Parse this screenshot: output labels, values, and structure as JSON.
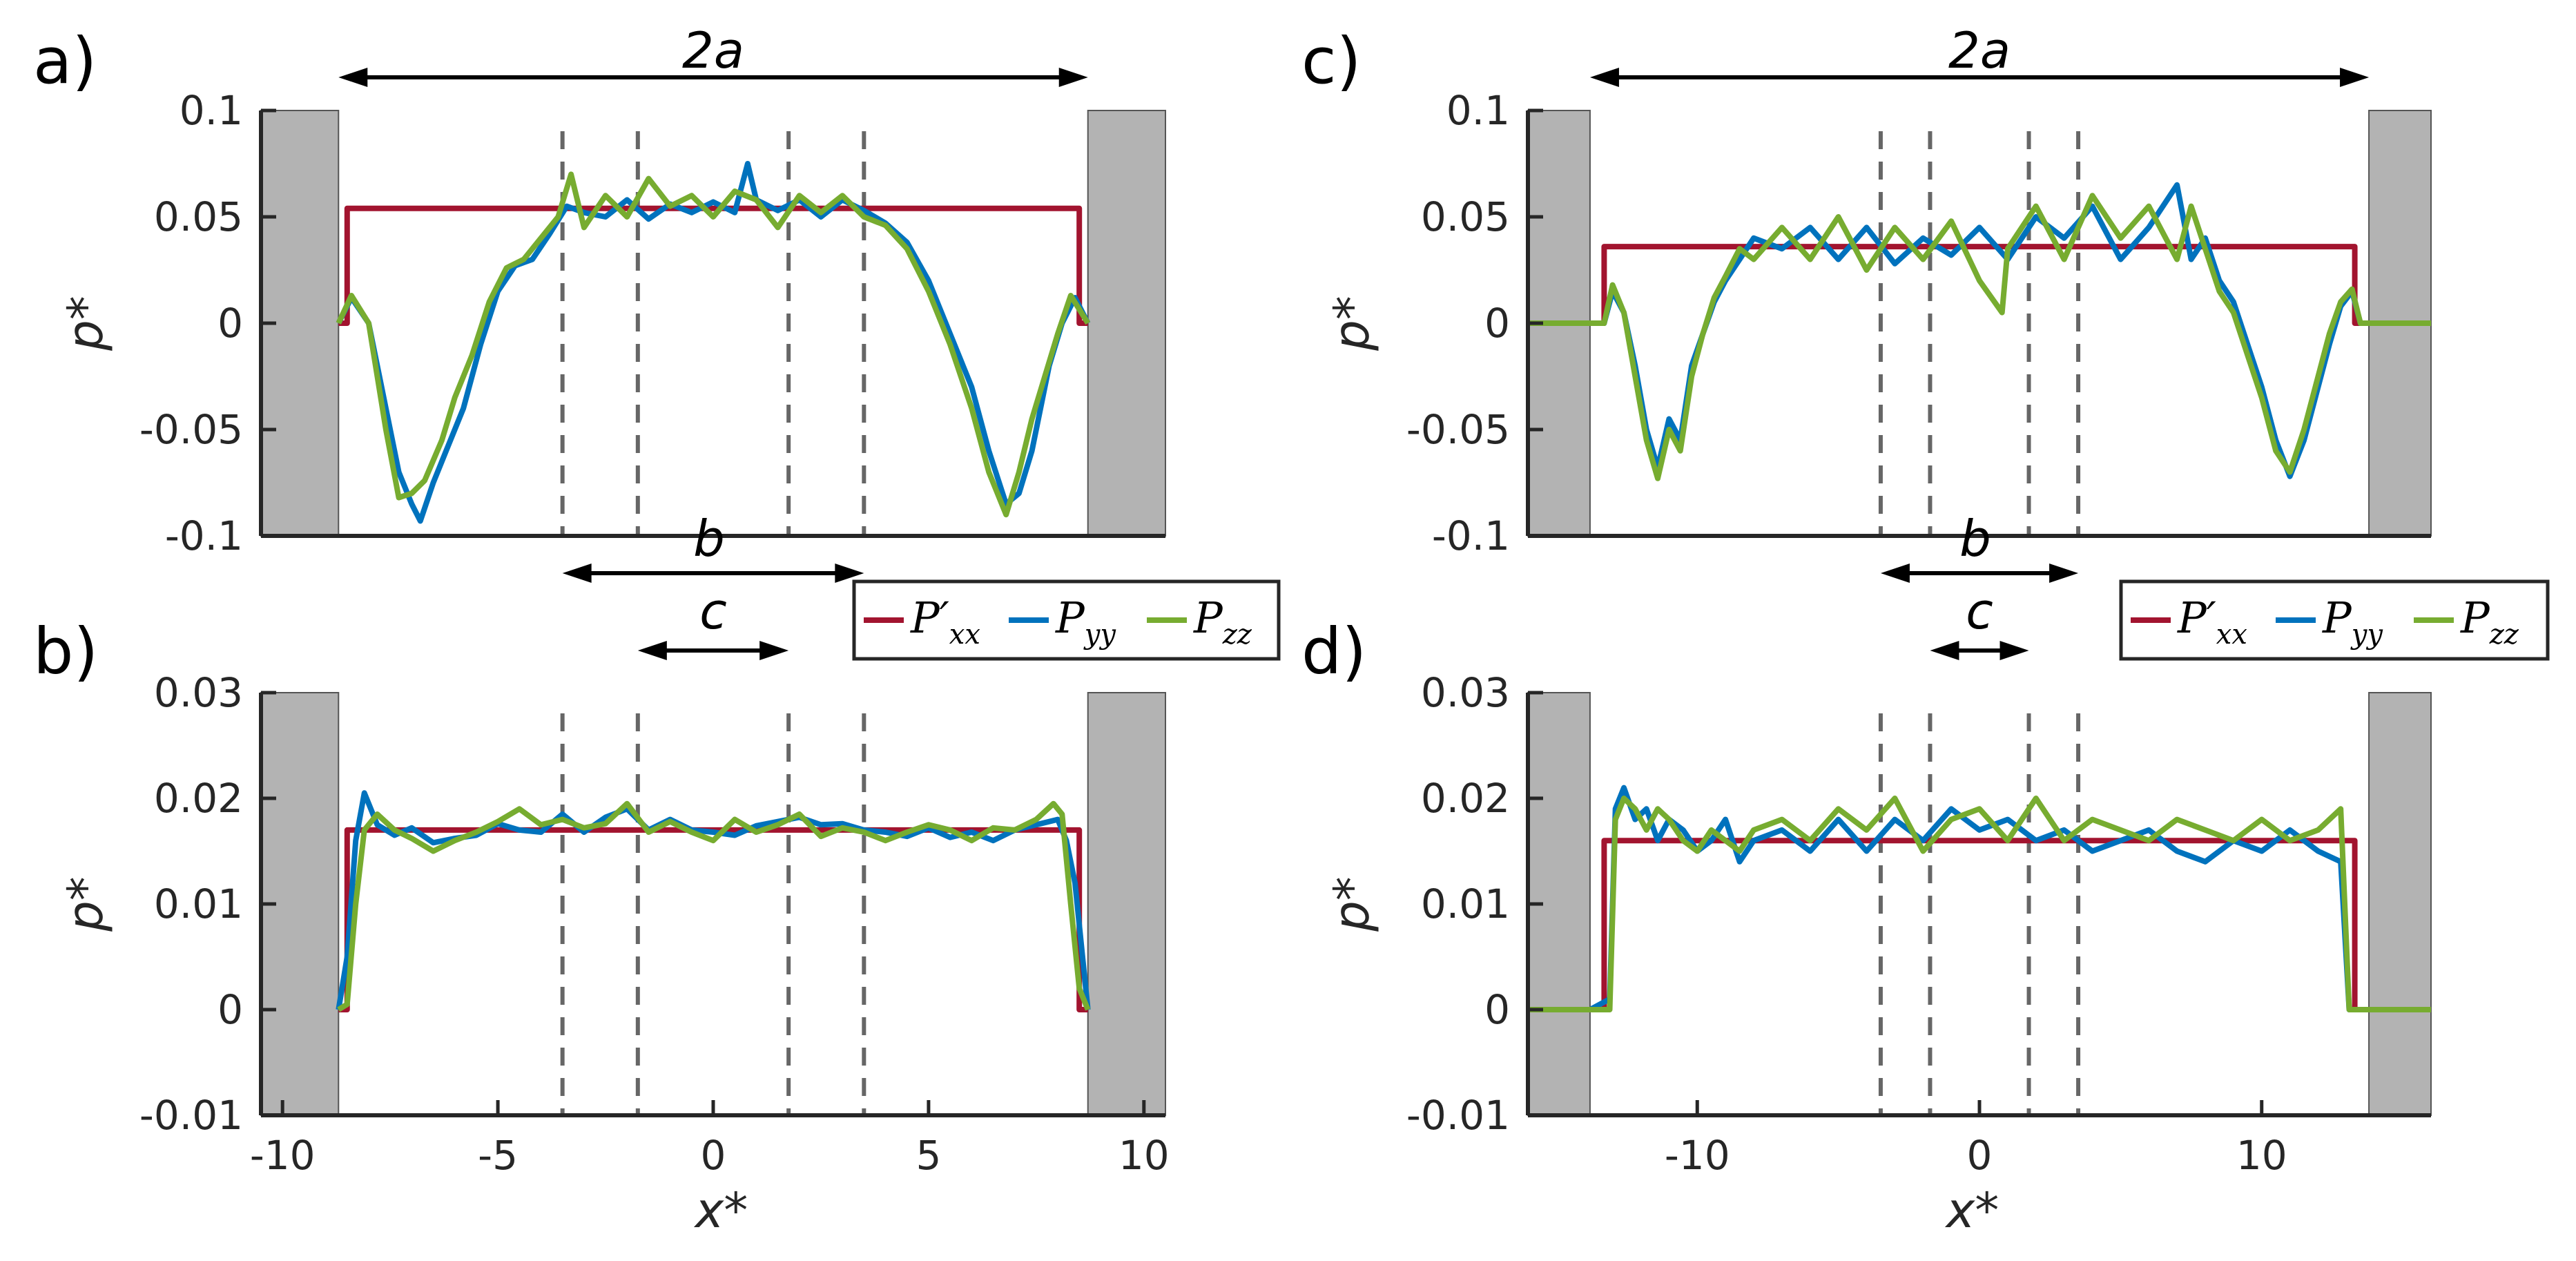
{
  "colors": {
    "pxx": "#a2142f",
    "pyy": "#0072bd",
    "pzz": "#77ac30",
    "wall": "#b3b3b3",
    "dash": "#666666"
  },
  "chart_data": [
    {
      "type": "line",
      "panel": "a)",
      "xlim": [
        -10.5,
        10.5
      ],
      "ylim": [
        -0.1,
        0.1
      ],
      "yticks": [
        -0.1,
        -0.05,
        0,
        0.05,
        0.1
      ],
      "ytick_labels": [
        "-0.1",
        "-0.05",
        "0",
        "0.05",
        "0.1"
      ],
      "xticks": [],
      "xtick_labels": [],
      "ylabel": "p*",
      "xlabel": "",
      "walls": [
        -8.7,
        8.7
      ],
      "dashed_x": [
        -3.5,
        -1.75,
        1.75,
        3.5
      ],
      "span_labels": {
        "top": "2a"
      },
      "series": [
        {
          "name": "P'xx",
          "x": [
            -8.7,
            -8.5,
            -8.5,
            8.5,
            8.5,
            8.7
          ],
          "y": [
            0,
            0,
            0.054,
            0.054,
            0,
            0
          ]
        },
        {
          "name": "Pyy",
          "x": [
            -8.7,
            -8.4,
            -8.0,
            -7.6,
            -7.3,
            -7.0,
            -6.8,
            -6.5,
            -6.2,
            -5.8,
            -5.4,
            -5.0,
            -4.6,
            -4.2,
            -3.8,
            -3.4,
            -3.0,
            -2.5,
            -2.0,
            -1.5,
            -1.0,
            -0.5,
            0.0,
            0.5,
            0.8,
            1.0,
            1.5,
            2.0,
            2.5,
            3.0,
            3.5,
            4.0,
            4.5,
            5.0,
            5.5,
            6.0,
            6.4,
            6.8,
            7.1,
            7.4,
            7.6,
            7.8,
            8.1,
            8.4,
            8.7
          ],
          "y": [
            0,
            0.012,
            0.0,
            -0.04,
            -0.07,
            -0.085,
            -0.093,
            -0.075,
            -0.06,
            -0.04,
            -0.01,
            0.015,
            0.027,
            0.03,
            0.042,
            0.055,
            0.052,
            0.05,
            0.058,
            0.049,
            0.056,
            0.052,
            0.057,
            0.052,
            0.075,
            0.058,
            0.053,
            0.058,
            0.05,
            0.058,
            0.053,
            0.047,
            0.038,
            0.02,
            -0.005,
            -0.03,
            -0.06,
            -0.085,
            -0.08,
            -0.06,
            -0.04,
            -0.02,
            0.0,
            0.012,
            0.0
          ]
        },
        {
          "name": "Pzz",
          "x": [
            -8.7,
            -8.4,
            -8.0,
            -7.6,
            -7.3,
            -7.0,
            -6.7,
            -6.3,
            -6.0,
            -5.6,
            -5.2,
            -4.8,
            -4.4,
            -4.0,
            -3.6,
            -3.3,
            -3.0,
            -2.5,
            -2.0,
            -1.5,
            -1.0,
            -0.5,
            0.0,
            0.5,
            1.0,
            1.5,
            2.0,
            2.5,
            3.0,
            3.5,
            4.0,
            4.5,
            5.0,
            5.5,
            6.0,
            6.4,
            6.8,
            7.1,
            7.4,
            7.7,
            8.0,
            8.3,
            8.7
          ],
          "y": [
            0,
            0.013,
            0.0,
            -0.05,
            -0.082,
            -0.08,
            -0.074,
            -0.055,
            -0.035,
            -0.015,
            0.01,
            0.026,
            0.03,
            0.04,
            0.05,
            0.07,
            0.045,
            0.06,
            0.05,
            0.068,
            0.055,
            0.06,
            0.05,
            0.062,
            0.058,
            0.045,
            0.06,
            0.052,
            0.06,
            0.05,
            0.046,
            0.035,
            0.015,
            -0.01,
            -0.04,
            -0.07,
            -0.09,
            -0.07,
            -0.045,
            -0.025,
            -0.005,
            0.013,
            0.0
          ]
        }
      ]
    },
    {
      "type": "line",
      "panel": "b)",
      "xlim": [
        -10.5,
        10.5
      ],
      "ylim": [
        -0.01,
        0.03
      ],
      "yticks": [
        -0.01,
        0,
        0.01,
        0.02,
        0.03
      ],
      "ytick_labels": [
        "-0.01",
        "0",
        "0.01",
        "0.02",
        "0.03"
      ],
      "xticks": [
        -10,
        -5,
        0,
        5,
        10
      ],
      "xtick_labels": [
        "-10",
        "-5",
        "0",
        "5",
        "10"
      ],
      "ylabel": "p*",
      "xlabel": "x*",
      "walls": [
        -8.7,
        8.7
      ],
      "dashed_x": [
        -3.5,
        -1.75,
        1.75,
        3.5
      ],
      "span_labels": {
        "b": "b",
        "c": "c"
      },
      "series": [
        {
          "name": "P'xx",
          "x": [
            -8.7,
            -8.5,
            -8.5,
            8.5,
            8.5,
            8.7
          ],
          "y": [
            0,
            0,
            0.017,
            0.017,
            0,
            0
          ]
        },
        {
          "name": "Pyy",
          "x": [
            -8.7,
            -8.5,
            -8.3,
            -8.1,
            -7.8,
            -7.4,
            -7.0,
            -6.5,
            -6.0,
            -5.5,
            -5.0,
            -4.5,
            -4.0,
            -3.5,
            -3.0,
            -2.5,
            -2.0,
            -1.5,
            -1.0,
            -0.5,
            0.0,
            0.5,
            1.0,
            1.5,
            2.0,
            2.5,
            3.0,
            3.5,
            4.0,
            4.5,
            5.0,
            5.5,
            6.0,
            6.5,
            7.0,
            7.5,
            8.0,
            8.2,
            8.4,
            8.7
          ],
          "y": [
            0,
            0.005,
            0.016,
            0.0205,
            0.0175,
            0.0165,
            0.0172,
            0.0158,
            0.0162,
            0.0165,
            0.0176,
            0.017,
            0.0168,
            0.0185,
            0.0168,
            0.0182,
            0.019,
            0.017,
            0.018,
            0.017,
            0.0168,
            0.0165,
            0.0174,
            0.0178,
            0.0182,
            0.0175,
            0.0176,
            0.017,
            0.0168,
            0.0164,
            0.0172,
            0.0163,
            0.0168,
            0.016,
            0.017,
            0.0175,
            0.018,
            0.016,
            0.012,
            0.0
          ]
        },
        {
          "name": "Pzz",
          "x": [
            -8.7,
            -8.5,
            -8.3,
            -8.1,
            -7.8,
            -7.4,
            -7.0,
            -6.5,
            -6.0,
            -5.5,
            -5.0,
            -4.5,
            -4.0,
            -3.5,
            -3.0,
            -2.5,
            -2.0,
            -1.5,
            -1.0,
            -0.5,
            0.0,
            0.5,
            1.0,
            1.5,
            2.0,
            2.5,
            3.0,
            3.5,
            4.0,
            4.5,
            5.0,
            5.5,
            6.0,
            6.5,
            7.0,
            7.5,
            7.9,
            8.1,
            8.3,
            8.5,
            8.7
          ],
          "y": [
            0,
            0.0005,
            0.01,
            0.017,
            0.0185,
            0.017,
            0.0162,
            0.015,
            0.016,
            0.0168,
            0.0178,
            0.019,
            0.0175,
            0.018,
            0.0172,
            0.0176,
            0.0195,
            0.0168,
            0.0178,
            0.0168,
            0.016,
            0.018,
            0.0168,
            0.0175,
            0.0185,
            0.0164,
            0.0172,
            0.0168,
            0.016,
            0.0168,
            0.0175,
            0.017,
            0.016,
            0.0172,
            0.017,
            0.018,
            0.0195,
            0.0185,
            0.01,
            0.002,
            0.0
          ]
        }
      ]
    },
    {
      "type": "line",
      "panel": "c)",
      "xlim": [
        -16,
        16
      ],
      "ylim": [
        -0.1,
        0.1
      ],
      "yticks": [
        -0.1,
        -0.05,
        0,
        0.05,
        0.1
      ],
      "ytick_labels": [
        "-0.1",
        "-0.05",
        "0",
        "0.05",
        "0.1"
      ],
      "xticks": [],
      "xtick_labels": [],
      "ylabel": "p*",
      "xlabel": "",
      "walls": [
        -13.8,
        13.8
      ],
      "dashed_x": [
        -3.5,
        -1.75,
        1.75,
        3.5
      ],
      "span_labels": {
        "top": "2a"
      },
      "series": [
        {
          "name": "P'xx",
          "x": [
            -13.8,
            -13.3,
            -13.3,
            13.3,
            13.3,
            13.8
          ],
          "y": [
            0,
            0,
            0.036,
            0.036,
            0,
            0
          ]
        },
        {
          "name": "Pyy",
          "x": [
            -13.8,
            -13.3,
            -13.0,
            -12.6,
            -12.2,
            -11.8,
            -11.4,
            -11.0,
            -10.6,
            -10.2,
            -9.8,
            -9.4,
            -9.0,
            -8.5,
            -8.0,
            -7.0,
            -6.0,
            -5.0,
            -4.0,
            -3.0,
            -2.0,
            -1.0,
            0.0,
            1.0,
            2.0,
            3.0,
            4.0,
            5.0,
            6.0,
            7.0,
            7.5,
            8.0,
            8.5,
            9.0,
            9.5,
            10.0,
            10.5,
            11.0,
            11.5,
            12.0,
            12.4,
            12.8,
            13.2,
            13.5,
            13.8
          ],
          "y": [
            0,
            0.0,
            0.015,
            0.005,
            -0.02,
            -0.05,
            -0.068,
            -0.045,
            -0.055,
            -0.02,
            -0.005,
            0.01,
            0.02,
            0.03,
            0.04,
            0.035,
            0.045,
            0.03,
            0.045,
            0.028,
            0.04,
            0.032,
            0.045,
            0.03,
            0.05,
            0.04,
            0.055,
            0.03,
            0.045,
            0.065,
            0.03,
            0.04,
            0.02,
            0.01,
            -0.01,
            -0.03,
            -0.055,
            -0.072,
            -0.055,
            -0.03,
            -0.01,
            0.008,
            0.015,
            0.0,
            0.0
          ]
        },
        {
          "name": "Pzz",
          "x": [
            -16,
            -13.8,
            -13.3,
            -13.0,
            -12.6,
            -12.2,
            -11.8,
            -11.4,
            -11.0,
            -10.6,
            -10.2,
            -9.8,
            -9.4,
            -9.0,
            -8.5,
            -8.0,
            -7.0,
            -6.0,
            -5.0,
            -4.0,
            -3.0,
            -2.0,
            -1.0,
            0.0,
            0.8,
            1.0,
            2.0,
            3.0,
            4.0,
            5.0,
            6.0,
            7.0,
            7.5,
            8.0,
            8.5,
            9.0,
            9.5,
            10.0,
            10.5,
            11.0,
            11.5,
            12.0,
            12.4,
            12.8,
            13.2,
            13.5,
            13.8,
            16
          ],
          "y": [
            0,
            0,
            0.0,
            0.018,
            0.005,
            -0.025,
            -0.055,
            -0.073,
            -0.05,
            -0.06,
            -0.025,
            -0.005,
            0.012,
            0.022,
            0.035,
            0.03,
            0.045,
            0.03,
            0.05,
            0.025,
            0.045,
            0.03,
            0.048,
            0.02,
            0.005,
            0.035,
            0.055,
            0.03,
            0.06,
            0.04,
            0.055,
            0.03,
            0.055,
            0.035,
            0.015,
            0.005,
            -0.015,
            -0.035,
            -0.06,
            -0.07,
            -0.05,
            -0.025,
            -0.005,
            0.01,
            0.016,
            0.0,
            0.0,
            0
          ]
        }
      ]
    },
    {
      "type": "line",
      "panel": "d)",
      "xlim": [
        -16,
        16
      ],
      "ylim": [
        -0.01,
        0.03
      ],
      "yticks": [
        -0.01,
        0,
        0.01,
        0.02,
        0.03
      ],
      "ytick_labels": [
        "-0.01",
        "0",
        "0.01",
        "0.02",
        "0.03"
      ],
      "xticks": [
        -10,
        0,
        10
      ],
      "xtick_labels": [
        "-10",
        "0",
        "10"
      ],
      "ylabel": "p*",
      "xlabel": "x*",
      "walls": [
        -13.8,
        13.8
      ],
      "dashed_x": [
        -3.5,
        -1.75,
        1.75,
        3.5
      ],
      "span_labels": {
        "b": "b",
        "c": "c"
      },
      "series": [
        {
          "name": "P'xx",
          "x": [
            -13.8,
            -13.3,
            -13.3,
            13.3,
            13.3,
            13.8
          ],
          "y": [
            0,
            0,
            0.016,
            0.016,
            0,
            0
          ]
        },
        {
          "name": "Pyy",
          "x": [
            -13.8,
            -13.1,
            -12.9,
            -12.6,
            -12.2,
            -11.8,
            -11.4,
            -11.0,
            -10.5,
            -10.0,
            -9.5,
            -9.0,
            -8.5,
            -8.0,
            -7.0,
            -6.0,
            -5.0,
            -4.0,
            -3.0,
            -2.0,
            -1.0,
            0.0,
            1.0,
            2.0,
            3.0,
            4.0,
            5.0,
            6.0,
            7.0,
            8.0,
            9.0,
            10.0,
            11.0,
            12.0,
            12.8,
            13.1,
            13.8
          ],
          "y": [
            0,
            0.001,
            0.019,
            0.021,
            0.018,
            0.019,
            0.016,
            0.018,
            0.017,
            0.015,
            0.016,
            0.018,
            0.014,
            0.016,
            0.017,
            0.015,
            0.018,
            0.015,
            0.018,
            0.016,
            0.019,
            0.017,
            0.018,
            0.016,
            0.017,
            0.015,
            0.016,
            0.017,
            0.015,
            0.014,
            0.016,
            0.015,
            0.017,
            0.015,
            0.014,
            0.0,
            0.0
          ]
        },
        {
          "name": "Pzz",
          "x": [
            -16,
            -13.8,
            -13.1,
            -12.9,
            -12.6,
            -12.2,
            -11.8,
            -11.4,
            -11.0,
            -10.5,
            -10.0,
            -9.5,
            -9.0,
            -8.5,
            -8.0,
            -7.0,
            -6.0,
            -5.0,
            -4.0,
            -3.0,
            -2.0,
            -1.0,
            0.0,
            1.0,
            2.0,
            3.0,
            4.0,
            5.0,
            6.0,
            7.0,
            8.0,
            9.0,
            10.0,
            11.0,
            12.0,
            12.8,
            13.1,
            13.8,
            16
          ],
          "y": [
            0,
            0,
            0.0,
            0.018,
            0.02,
            0.019,
            0.017,
            0.019,
            0.018,
            0.016,
            0.015,
            0.017,
            0.016,
            0.015,
            0.017,
            0.018,
            0.016,
            0.019,
            0.017,
            0.02,
            0.015,
            0.018,
            0.019,
            0.016,
            0.02,
            0.016,
            0.018,
            0.017,
            0.016,
            0.018,
            0.017,
            0.016,
            0.018,
            0.016,
            0.017,
            0.019,
            0.0,
            0.0,
            0
          ]
        }
      ]
    }
  ],
  "legend": {
    "entries": [
      {
        "key": "pxx",
        "base": "P",
        "prime": "′",
        "sub": "xx"
      },
      {
        "key": "pyy",
        "base": "P",
        "prime": "",
        "sub": "yy"
      },
      {
        "key": "pzz",
        "base": "P",
        "prime": "",
        "sub": "zz"
      }
    ]
  }
}
